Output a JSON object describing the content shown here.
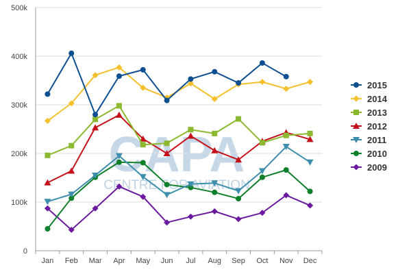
{
  "chart_data": {
    "type": "line",
    "title": "",
    "xlabel": "",
    "ylabel": "",
    "categories": [
      "Jan",
      "Feb",
      "Mar",
      "Apr",
      "May",
      "Jun",
      "Jul",
      "Aug",
      "Sep",
      "Oct",
      "Nov",
      "Dec"
    ],
    "ylim": [
      0,
      500000
    ],
    "yticks": [
      0,
      100000,
      200000,
      300000,
      400000,
      500000
    ],
    "ytick_labels": [
      "0",
      "100k",
      "200k",
      "300k",
      "400k",
      "500k"
    ],
    "grid": "horizontal",
    "legend_position": "right",
    "watermark": {
      "line1": "CAPA",
      "line2": "CENTRE FOR AVIATION"
    },
    "series": [
      {
        "name": "2015",
        "color": "#0d4f91",
        "marker": "circle",
        "values": [
          322000,
          406000,
          280000,
          359000,
          372000,
          309000,
          353000,
          368000,
          345000,
          386000,
          358000,
          null
        ]
      },
      {
        "name": "2014",
        "color": "#f5c02c",
        "marker": "diamond",
        "values": [
          267000,
          303000,
          361000,
          377000,
          335000,
          315000,
          344000,
          312000,
          342000,
          347000,
          333000,
          347000
        ]
      },
      {
        "name": "2013",
        "color": "#8bb930",
        "marker": "square",
        "values": [
          196000,
          216000,
          270000,
          298000,
          218000,
          221000,
          249000,
          241000,
          271000,
          222000,
          237000,
          241000
        ]
      },
      {
        "name": "2012",
        "color": "#c4111a",
        "marker": "triangle",
        "values": [
          140000,
          164000,
          253000,
          279000,
          230000,
          200000,
          236000,
          206000,
          187000,
          225000,
          243000,
          229000
        ]
      },
      {
        "name": "2011",
        "color": "#3d8ead",
        "marker": "triangle-down",
        "values": [
          101000,
          116000,
          155000,
          195000,
          152000,
          115000,
          137000,
          139000,
          123000,
          164000,
          214000,
          182000
        ]
      },
      {
        "name": "2010",
        "color": "#0e7f2a",
        "marker": "circle",
        "values": [
          45000,
          108000,
          151000,
          182000,
          181000,
          136000,
          130000,
          120000,
          107000,
          151000,
          166000,
          122000
        ]
      },
      {
        "name": "2009",
        "color": "#6b1aa0",
        "marker": "diamond",
        "values": [
          87000,
          43000,
          87000,
          132000,
          111000,
          58000,
          70000,
          81000,
          65000,
          78000,
          114000,
          93000
        ]
      }
    ]
  }
}
